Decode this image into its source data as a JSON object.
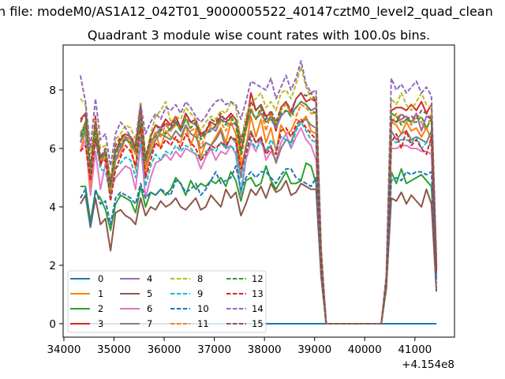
{
  "chart_data": {
    "type": "line",
    "suptitle": "n file: modeM0/AS1A12_042T01_9000005522_40147cztM0_level2_quad_clean",
    "title": "Quadrant 3 module wise count rates with 100.0s bins.",
    "xlabel": "",
    "ylabel": "",
    "x_offset_text": "+4.154e8",
    "xlim": [
      33985,
      41790
    ],
    "ylim": [
      -0.46,
      9.54
    ],
    "x_ticks": [
      "34000",
      "35000",
      "36000",
      "37000",
      "38000",
      "39000",
      "40000",
      "41000"
    ],
    "x_tick_values": [
      34000,
      35000,
      36000,
      37000,
      38000,
      39000,
      40000,
      41000
    ],
    "y_ticks": [
      "0",
      "2",
      "4",
      "6",
      "8"
    ],
    "y_tick_values": [
      0,
      2,
      4,
      6,
      8
    ],
    "grid": false,
    "legend_placement": "lower-left",
    "legend_columns": 4,
    "x_start": 34330,
    "x_step": 100,
    "series": [
      {
        "name": "0",
        "color": "#1f77b4",
        "style": "solid",
        "values": [
          0,
          0,
          0,
          0,
          0,
          0,
          0,
          0,
          0,
          0,
          0,
          0,
          0,
          0,
          0,
          0,
          0,
          0,
          0,
          0,
          0,
          0,
          0,
          0,
          0,
          0,
          0,
          0,
          0,
          0,
          0,
          0,
          0,
          0,
          0,
          0,
          0,
          0,
          0,
          0,
          0,
          0,
          0,
          0,
          0,
          0,
          0,
          0,
          0,
          0,
          0,
          0,
          0,
          0,
          0,
          0,
          0,
          0,
          0,
          0,
          0,
          0,
          0,
          0,
          0,
          0,
          0,
          0,
          0,
          0,
          0,
          0
        ]
      },
      {
        "name": "1",
        "color": "#ff7f0e",
        "style": "solid",
        "values": [
          5.9,
          6.6,
          4.6,
          6.9,
          5.5,
          5.7,
          4.4,
          5.6,
          5.8,
          6.4,
          6.1,
          5.3,
          6.9,
          5.0,
          6.0,
          6.5,
          6.0,
          6.6,
          6.4,
          6.3,
          6.2,
          6.8,
          6.1,
          6.6,
          5.7,
          6.2,
          6.1,
          6.4,
          6.7,
          6.2,
          6.9,
          6.5,
          5.4,
          6.0,
          7.1,
          6.4,
          7.0,
          6.2,
          6.7,
          5.9,
          6.8,
          6.5,
          6.6,
          7.0,
          6.9,
          7.1,
          6.6,
          6.5,
          2.0,
          0,
          0,
          0,
          0,
          0,
          0,
          0,
          0,
          0,
          0,
          0,
          0,
          1.3,
          6.9,
          6.8,
          6.5,
          6.9,
          6.6,
          6.7,
          6.4,
          6.7,
          6.3,
          1.8
        ]
      },
      {
        "name": "2",
        "color": "#2ca02c",
        "style": "solid",
        "values": [
          4.7,
          4.7,
          3.5,
          4.5,
          4.3,
          3.9,
          3.2,
          4.1,
          4.4,
          4.3,
          4.2,
          3.8,
          4.7,
          4.0,
          4.5,
          4.4,
          4.6,
          4.4,
          4.6,
          5.0,
          4.8,
          4.4,
          4.9,
          4.6,
          4.8,
          4.7,
          4.9,
          4.8,
          5.0,
          4.7,
          5.2,
          4.9,
          4.2,
          4.9,
          5.0,
          4.7,
          4.8,
          5.4,
          4.9,
          4.6,
          4.9,
          5.2,
          4.8,
          4.8,
          4.9,
          5.5,
          5.4,
          4.8,
          1.7,
          0,
          0,
          0,
          0,
          0,
          0,
          0,
          0,
          0,
          0,
          0,
          0,
          1.4,
          5.2,
          4.8,
          5.3,
          4.8,
          4.9,
          5.0,
          5.1,
          4.9,
          4.7,
          1.6
        ]
      },
      {
        "name": "3",
        "color": "#d62728",
        "style": "solid",
        "values": [
          7.0,
          7.2,
          5.0,
          7.1,
          5.4,
          6.0,
          4.6,
          5.9,
          6.3,
          6.5,
          6.4,
          6.0,
          7.5,
          5.6,
          6.4,
          6.8,
          6.7,
          7.0,
          6.8,
          7.1,
          6.7,
          7.2,
          6.9,
          7.0,
          6.5,
          6.6,
          6.9,
          6.8,
          7.1,
          7.0,
          7.2,
          7.0,
          5.9,
          6.7,
          7.9,
          7.3,
          7.5,
          7.1,
          7.2,
          6.6,
          7.4,
          7.6,
          7.2,
          7.7,
          7.9,
          7.6,
          7.7,
          7.6,
          2.3,
          0,
          0,
          0,
          0,
          0,
          0,
          0,
          0,
          0,
          0,
          0,
          0,
          1.5,
          7.3,
          7.4,
          7.4,
          7.3,
          7.5,
          7.3,
          7.6,
          7.2,
          7.5,
          2.0
        ]
      },
      {
        "name": "4",
        "color": "#9467bd",
        "style": "solid",
        "values": [
          6.2,
          6.8,
          5.2,
          6.4,
          5.6,
          5.8,
          4.8,
          5.6,
          6.0,
          6.4,
          6.3,
          5.9,
          7.2,
          5.5,
          6.2,
          6.5,
          6.7,
          6.8,
          6.6,
          6.9,
          6.6,
          7.0,
          6.9,
          6.8,
          6.4,
          6.5,
          6.7,
          6.6,
          7.0,
          6.9,
          6.8,
          6.9,
          6.4,
          6.6,
          7.3,
          7.0,
          7.2,
          6.9,
          7.0,
          6.7,
          7.1,
          7.3,
          7.2,
          7.4,
          7.6,
          7.5,
          7.3,
          7.4,
          2.2,
          0,
          0,
          0,
          0,
          0,
          0,
          0,
          0,
          0,
          0,
          0,
          0,
          1.4,
          7.0,
          6.9,
          7.0,
          7.1,
          6.9,
          7.2,
          6.6,
          7.1,
          7.0,
          1.9
        ]
      },
      {
        "name": "5",
        "color": "#8c564b",
        "style": "solid",
        "values": [
          4.1,
          4.4,
          3.3,
          4.3,
          3.4,
          3.6,
          2.5,
          3.8,
          3.9,
          3.7,
          3.6,
          3.4,
          4.3,
          3.7,
          4.0,
          3.9,
          4.2,
          4.0,
          4.1,
          4.3,
          4.0,
          3.9,
          4.1,
          4.3,
          3.9,
          4.0,
          4.4,
          4.2,
          4.0,
          4.6,
          4.3,
          4.5,
          3.7,
          4.1,
          4.6,
          4.4,
          4.7,
          4.3,
          4.8,
          4.5,
          4.6,
          4.9,
          4.4,
          4.5,
          4.8,
          4.7,
          4.6,
          4.6,
          1.6,
          0,
          0,
          0,
          0,
          0,
          0,
          0,
          0,
          0,
          0,
          0,
          0,
          1.2,
          4.3,
          4.2,
          4.5,
          4.1,
          4.4,
          4.2,
          4.0,
          4.6,
          4.1,
          1.1
        ]
      },
      {
        "name": "6",
        "color": "#e377c2",
        "style": "solid",
        "values": [
          5.9,
          6.3,
          4.4,
          5.9,
          4.6,
          5.5,
          4.6,
          5.0,
          5.2,
          5.4,
          5.3,
          4.6,
          6.2,
          4.3,
          5.0,
          5.5,
          5.6,
          5.8,
          5.6,
          5.9,
          5.7,
          6.0,
          5.9,
          5.8,
          5.3,
          5.7,
          6.0,
          5.6,
          5.9,
          5.8,
          6.1,
          5.8,
          4.4,
          5.6,
          6.2,
          5.9,
          6.4,
          5.6,
          5.9,
          5.6,
          6.2,
          6.5,
          6.0,
          6.4,
          6.7,
          6.3,
          6.1,
          5.6,
          1.9,
          0,
          0,
          0,
          0,
          0,
          0,
          0,
          0,
          0,
          0,
          0,
          0,
          1.3,
          6.0,
          6.0,
          6.1,
          6.1,
          6.0,
          6.0,
          5.9,
          5.9,
          5.8,
          1.7
        ]
      },
      {
        "name": "7",
        "color": "#7f7f7f",
        "style": "solid",
        "values": [
          6.2,
          6.7,
          5.3,
          6.4,
          5.6,
          5.9,
          4.6,
          5.9,
          6.1,
          6.3,
          6.2,
          5.8,
          6.9,
          5.4,
          5.8,
          6.3,
          6.5,
          6.4,
          6.3,
          6.6,
          6.4,
          6.8,
          6.5,
          6.4,
          6.0,
          6.2,
          6.1,
          6.3,
          6.6,
          6.0,
          6.4,
          6.2,
          5.0,
          6.1,
          6.6,
          6.2,
          6.3,
          5.9,
          6.1,
          5.5,
          6.0,
          6.3,
          6.2,
          6.7,
          6.9,
          7.0,
          6.8,
          6.7,
          2.1,
          0,
          0,
          0,
          0,
          0,
          0,
          0,
          0,
          0,
          0,
          0,
          0,
          1.3,
          6.6,
          6.3,
          6.5,
          6.6,
          6.3,
          6.4,
          6.3,
          6.2,
          6.6,
          1.9
        ]
      },
      {
        "name": "8",
        "color": "#bcbd22",
        "style": "dashed",
        "values": [
          7.7,
          7.5,
          5.8,
          7.0,
          6.0,
          6.1,
          4.9,
          6.3,
          6.5,
          6.8,
          6.7,
          6.3,
          7.6,
          5.7,
          6.5,
          7.1,
          7.3,
          7.6,
          6.9,
          7.1,
          7.0,
          7.4,
          7.2,
          7.0,
          6.6,
          6.9,
          7.1,
          7.0,
          7.3,
          7.2,
          7.6,
          7.4,
          6.2,
          7.1,
          7.6,
          7.7,
          7.9,
          7.4,
          7.6,
          7.3,
          7.9,
          8.0,
          7.7,
          8.2,
          8.8,
          8.1,
          7.7,
          7.8,
          2.5,
          0,
          0,
          0,
          0,
          0,
          0,
          0,
          0,
          0,
          0,
          0,
          0,
          1.6,
          7.7,
          7.5,
          7.9,
          7.5,
          7.3,
          7.6,
          7.9,
          7.5,
          7.4,
          2.1
        ]
      },
      {
        "name": "9",
        "color": "#17becf",
        "style": "dashed",
        "values": [
          6.6,
          6.5,
          5.0,
          6.3,
          5.3,
          5.2,
          4.4,
          5.3,
          5.5,
          5.7,
          5.6,
          5.0,
          6.4,
          4.7,
          5.4,
          5.8,
          5.6,
          5.9,
          5.8,
          6.1,
          5.9,
          6.1,
          6.0,
          5.8,
          5.6,
          5.9,
          6.0,
          5.9,
          6.2,
          6.0,
          6.1,
          5.9,
          4.5,
          5.8,
          6.3,
          6.0,
          6.2,
          5.9,
          6.3,
          6.0,
          6.4,
          6.3,
          6.1,
          6.6,
          6.9,
          6.6,
          6.3,
          6.2,
          2.0,
          0,
          0,
          0,
          0,
          0,
          0,
          0,
          0,
          0,
          0,
          0,
          0,
          1.3,
          6.3,
          6.2,
          6.3,
          6.3,
          6.2,
          6.4,
          6.0,
          6.2,
          6.1,
          1.5
        ]
      },
      {
        "name": "10",
        "color": "#1f77b4",
        "style": "dashed",
        "values": [
          4.3,
          4.6,
          3.3,
          4.6,
          4.1,
          4.2,
          3.4,
          4.3,
          4.5,
          4.4,
          4.3,
          4.1,
          4.8,
          4.3,
          4.5,
          4.4,
          4.6,
          4.5,
          4.4,
          4.9,
          4.8,
          4.5,
          4.6,
          4.8,
          4.4,
          4.6,
          4.9,
          5.2,
          4.8,
          4.9,
          5.0,
          5.4,
          4.6,
          5.0,
          5.2,
          5.0,
          5.2,
          5.2,
          5.0,
          4.8,
          5.1,
          5.3,
          5.3,
          5.0,
          4.9,
          4.8,
          4.7,
          5.0,
          1.8,
          0,
          0,
          0,
          0,
          0,
          0,
          0,
          0,
          0,
          0,
          0,
          0,
          1.3,
          4.9,
          5.0,
          4.9,
          5.2,
          5.1,
          5.2,
          5.2,
          5.1,
          5.2,
          1.4
        ]
      },
      {
        "name": "11",
        "color": "#ff7f0e",
        "style": "dashed",
        "values": [
          6.5,
          6.9,
          4.7,
          6.8,
          5.6,
          5.7,
          4.5,
          5.7,
          6.2,
          6.5,
          6.3,
          5.8,
          7.2,
          5.3,
          6.1,
          6.6,
          6.4,
          6.8,
          6.6,
          6.8,
          6.7,
          7.1,
          6.6,
          6.7,
          6.0,
          6.5,
          6.8,
          6.7,
          6.9,
          6.6,
          7.0,
          6.8,
          5.6,
          6.6,
          7.4,
          7.0,
          7.3,
          6.6,
          7.2,
          6.8,
          7.3,
          7.5,
          7.2,
          7.1,
          7.5,
          7.4,
          7.2,
          7.2,
          2.2,
          0,
          0,
          0,
          0,
          0,
          0,
          0,
          0,
          0,
          0,
          0,
          0,
          1.5,
          6.8,
          7.2,
          6.9,
          7.0,
          6.8,
          7.1,
          6.9,
          6.6,
          7.2,
          1.9
        ]
      },
      {
        "name": "12",
        "color": "#2ca02c",
        "style": "dashed",
        "values": [
          6.4,
          6.9,
          5.1,
          6.6,
          5.7,
          5.8,
          4.7,
          5.8,
          6.2,
          6.3,
          6.2,
          5.9,
          7.0,
          5.6,
          6.3,
          6.4,
          6.6,
          6.5,
          6.7,
          6.9,
          6.6,
          7.0,
          6.7,
          6.9,
          6.3,
          6.5,
          6.6,
          6.8,
          7.0,
          6.8,
          7.1,
          6.8,
          5.8,
          6.7,
          7.3,
          7.0,
          7.4,
          6.9,
          7.1,
          6.8,
          7.2,
          7.3,
          7.1,
          7.4,
          7.6,
          7.5,
          7.3,
          7.2,
          2.2,
          0,
          0,
          0,
          0,
          0,
          0,
          0,
          0,
          0,
          0,
          0,
          0,
          1.4,
          7.2,
          7.1,
          6.8,
          7.0,
          6.9,
          6.9,
          7.1,
          6.7,
          7.0,
          1.8
        ]
      },
      {
        "name": "13",
        "color": "#d62728",
        "style": "dashed",
        "values": [
          5.9,
          6.1,
          4.9,
          6.3,
          5.5,
          5.6,
          4.2,
          5.3,
          5.7,
          6.1,
          5.9,
          5.4,
          6.7,
          5.0,
          5.6,
          6.2,
          6.0,
          6.3,
          6.1,
          6.4,
          6.0,
          6.5,
          6.2,
          6.0,
          5.6,
          5.8,
          6.1,
          6.0,
          6.2,
          6.1,
          6.4,
          6.3,
          5.3,
          5.8,
          6.5,
          6.2,
          6.4,
          5.8,
          6.0,
          5.8,
          6.6,
          6.7,
          6.4,
          6.8,
          7.0,
          6.7,
          6.5,
          6.3,
          2.0,
          0,
          0,
          0,
          0,
          0,
          0,
          0,
          0,
          0,
          0,
          0,
          0,
          1.4,
          6.2,
          6.5,
          6.0,
          6.6,
          6.1,
          6.3,
          6.0,
          5.8,
          6.4,
          1.7
        ]
      },
      {
        "name": "14",
        "color": "#9467bd",
        "style": "dashed",
        "values": [
          8.5,
          7.6,
          6.0,
          7.7,
          6.3,
          6.5,
          5.4,
          6.5,
          6.9,
          6.7,
          6.4,
          6.2,
          7.5,
          6.5,
          6.9,
          7.2,
          7.0,
          7.4,
          7.3,
          7.5,
          7.2,
          7.6,
          7.4,
          7.1,
          6.9,
          7.1,
          7.4,
          7.6,
          7.7,
          7.5,
          7.6,
          7.5,
          7.0,
          7.6,
          8.3,
          8.2,
          8.1,
          8.0,
          8.4,
          7.7,
          8.1,
          8.5,
          8.0,
          8.4,
          9.0,
          8.2,
          7.9,
          8.0,
          2.6,
          0,
          0,
          0,
          0,
          0,
          0,
          0,
          0,
          0,
          0,
          0,
          0,
          1.7,
          8.4,
          8.0,
          8.2,
          7.9,
          8.1,
          8.3,
          7.9,
          8.1,
          7.8,
          2.2
        ]
      },
      {
        "name": "15",
        "color": "#8c564b",
        "style": "dashed",
        "values": [
          6.9,
          7.2,
          5.4,
          6.9,
          5.7,
          6.0,
          4.8,
          6.1,
          6.4,
          6.5,
          6.4,
          6.1,
          7.3,
          5.7,
          6.4,
          6.8,
          6.6,
          6.9,
          6.7,
          7.0,
          6.7,
          7.2,
          6.9,
          6.9,
          6.4,
          6.6,
          7.0,
          6.9,
          7.2,
          6.9,
          7.1,
          7.0,
          6.2,
          6.9,
          7.6,
          7.3,
          7.5,
          7.0,
          7.3,
          6.9,
          7.4,
          7.6,
          7.3,
          7.7,
          7.9,
          7.8,
          7.9,
          7.6,
          2.4,
          0,
          0,
          0,
          0,
          0,
          0,
          0,
          0,
          0,
          0,
          0,
          0,
          1.5,
          7.0,
          6.9,
          7.2,
          7.0,
          7.1,
          7.0,
          7.3,
          7.2,
          7.0,
          1.9
        ]
      }
    ]
  }
}
